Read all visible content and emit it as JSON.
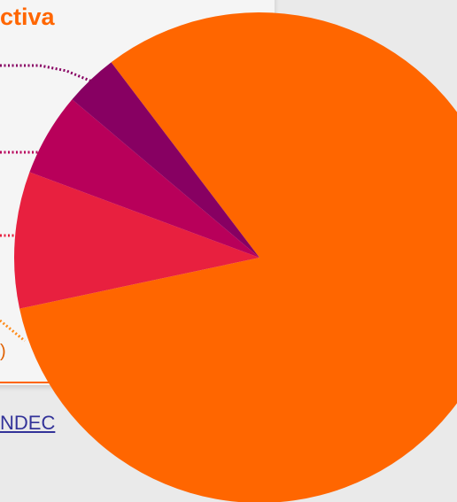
{
  "title_fragment": "ctiva",
  "source_fragment": "NDEC",
  "leader_fragment": ")",
  "colors": {
    "background": "#eaeaea",
    "title": "#ff6600",
    "link": "#333399"
  },
  "chart_data": {
    "type": "pie",
    "title": "",
    "slices": [
      {
        "value": 82,
        "color": "#ff6600"
      },
      {
        "value": 9,
        "color": "#e8203f"
      },
      {
        "value": 5.5,
        "color": "#b8005a"
      },
      {
        "value": 3.5,
        "color": "#870062"
      }
    ],
    "leader_colors": [
      "#ff8c1a",
      "#e8203f",
      "#b8005a",
      "#870062"
    ]
  }
}
